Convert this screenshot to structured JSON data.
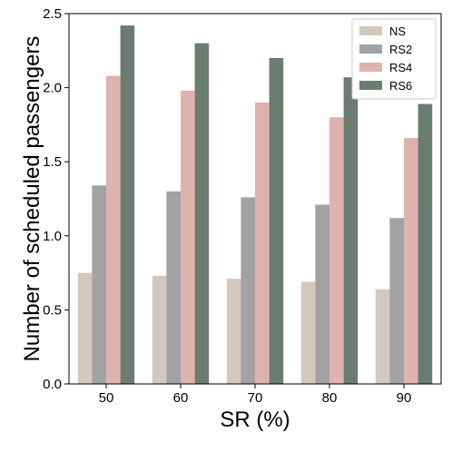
{
  "chart_data": {
    "type": "bar",
    "xlabel": "SR (%)",
    "ylabel": "Number of scheduled passengers",
    "categories": [
      "50",
      "60",
      "70",
      "80",
      "90"
    ],
    "ylim": [
      0,
      2.5
    ],
    "yticks": [
      "0.0",
      "0.5",
      "1.0",
      "1.5",
      "2.0",
      "2.5"
    ],
    "grid": false,
    "legend_position": "top-right",
    "series": [
      {
        "name": "NS",
        "color": "#d3c8bd",
        "values": [
          0.75,
          0.73,
          0.71,
          0.69,
          0.64
        ]
      },
      {
        "name": "RS2",
        "color": "#a2a2a5",
        "values": [
          1.34,
          1.3,
          1.26,
          1.21,
          1.12
        ]
      },
      {
        "name": "RS4",
        "color": "#dfb3ad",
        "values": [
          2.08,
          1.98,
          1.9,
          1.8,
          1.66
        ]
      },
      {
        "name": "RS6",
        "color": "#6b7c70",
        "values": [
          2.42,
          2.3,
          2.2,
          2.07,
          1.89
        ]
      }
    ]
  }
}
